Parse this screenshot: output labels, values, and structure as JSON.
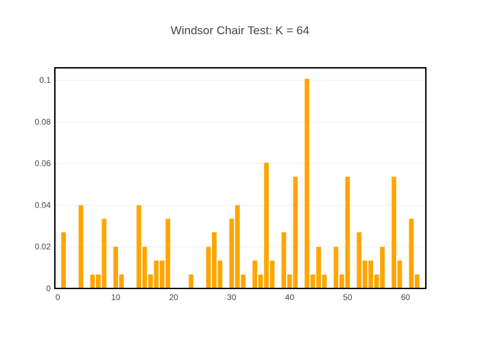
{
  "chart_data": {
    "type": "bar",
    "title": "Windsor Chair Test: K = 64",
    "xlabel": "",
    "ylabel": "",
    "xlim": [
      -0.5,
      63.5
    ],
    "ylim": [
      0,
      0.106
    ],
    "x_ticks": [
      0,
      10,
      20,
      30,
      40,
      50,
      60
    ],
    "y_ticks": [
      0,
      0.02,
      0.04,
      0.06,
      0.08,
      0.1
    ],
    "y_tick_labels": [
      "0",
      "0.02",
      "0.04",
      "0.06",
      "0.08",
      "0.1"
    ],
    "grid": true,
    "bar_color": "#FFA500",
    "series": [
      {
        "x": [
          0,
          1,
          2,
          3,
          4,
          5,
          6,
          7,
          8,
          9,
          10,
          11,
          12,
          13,
          14,
          15,
          16,
          17,
          18,
          19,
          20,
          21,
          22,
          23,
          24,
          25,
          26,
          27,
          28,
          29,
          30,
          31,
          32,
          33,
          34,
          35,
          36,
          37,
          38,
          39,
          40,
          41,
          42,
          43,
          44,
          45,
          46,
          47,
          48,
          49,
          50,
          51,
          52,
          53,
          54,
          55,
          56,
          57,
          58,
          59,
          60,
          61,
          62,
          63
        ],
        "values": [
          0,
          0.027,
          0,
          0,
          0.04,
          0,
          0.0067,
          0.0067,
          0.0335,
          0,
          0.02,
          0.0067,
          0,
          0,
          0.04,
          0.02,
          0.0067,
          0.0134,
          0.0134,
          0.0335,
          0,
          0,
          0,
          0.0067,
          0,
          0,
          0.02,
          0.027,
          0.0134,
          0,
          0.0335,
          0.04,
          0.0067,
          0,
          0.0134,
          0.0067,
          0.0604,
          0.0134,
          0,
          0.027,
          0.0067,
          0.0537,
          0,
          0.1007,
          0.0067,
          0.02,
          0.0067,
          0,
          0.02,
          0.0067,
          0.0537,
          0,
          0.027,
          0.0134,
          0.0134,
          0.0067,
          0.02,
          0,
          0.0537,
          0.0134,
          0,
          0.0335,
          0.0067,
          0
        ]
      }
    ]
  }
}
